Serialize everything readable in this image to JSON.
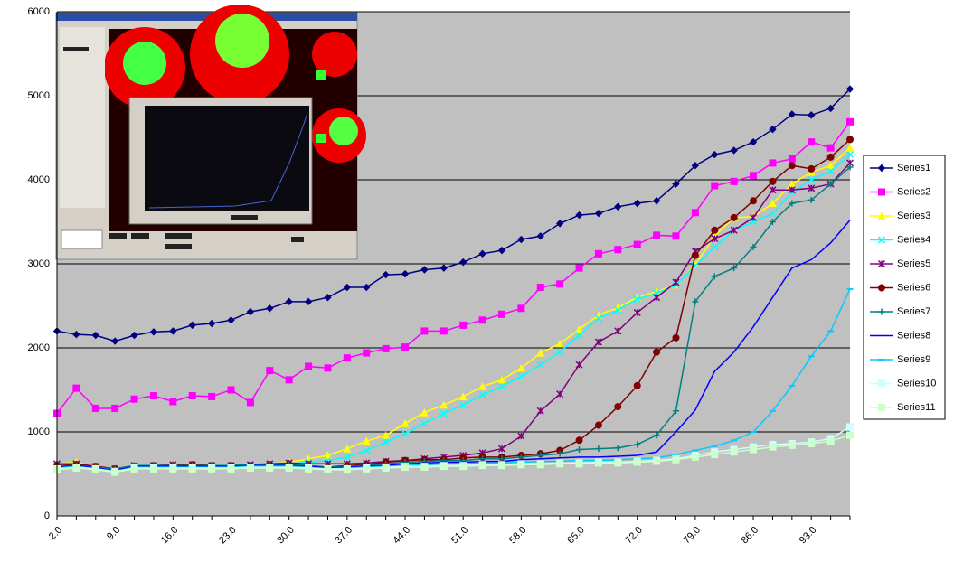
{
  "chart_data": {
    "type": "line",
    "categories": [
      "2.0",
      null,
      null,
      "9.0",
      null,
      null,
      "16.0",
      null,
      null,
      "23.0",
      null,
      null,
      "30.0",
      null,
      null,
      "37.0",
      null,
      null,
      "44.0",
      null,
      null,
      "51.0",
      null,
      null,
      "58.0",
      null,
      null,
      "65.0",
      null,
      null,
      "72.0",
      null,
      null,
      "79.0",
      null,
      null,
      "86.0",
      null,
      null,
      "93.0",
      null,
      null
    ],
    "ylim": [
      0,
      6000
    ],
    "yticks": [
      0,
      1000,
      2000,
      3000,
      4000,
      5000,
      6000
    ],
    "grid": true,
    "legend": "right",
    "series": [
      {
        "name": "Series1",
        "color": "#000080",
        "marker": "diamond",
        "values": [
          2200,
          2160,
          2150,
          2080,
          2150,
          2190,
          2200,
          2270,
          2290,
          2330,
          2430,
          2470,
          2550,
          2550,
          2600,
          2720,
          2720,
          2870,
          2880,
          2930,
          2950,
          3020,
          3120,
          3160,
          3290,
          3330,
          3480,
          3580,
          3600,
          3680,
          3720,
          3750,
          3950,
          4170,
          4300,
          4350,
          4450,
          4600,
          4780,
          4770,
          4850,
          5080
        ]
      },
      {
        "name": "Series2",
        "color": "#ff00ff",
        "marker": "square",
        "values": [
          1220,
          1520,
          1280,
          1280,
          1390,
          1430,
          1360,
          1430,
          1420,
          1500,
          1350,
          1730,
          1620,
          1780,
          1760,
          1880,
          1940,
          1990,
          2010,
          2200,
          2200,
          2270,
          2330,
          2400,
          2470,
          2720,
          2760,
          2950,
          3120,
          3170,
          3230,
          3340,
          3330,
          3610,
          3930,
          3980,
          4050,
          4200,
          4250,
          4450,
          4380,
          4690
        ]
      },
      {
        "name": "Series3",
        "color": "#ffff00",
        "marker": "triangle",
        "values": [
          620,
          640,
          580,
          550,
          590,
          600,
          600,
          610,
          600,
          590,
          600,
          620,
          640,
          680,
          720,
          800,
          890,
          960,
          1100,
          1230,
          1320,
          1420,
          1540,
          1620,
          1760,
          1940,
          2050,
          2220,
          2390,
          2480,
          2600,
          2670,
          2750,
          2990,
          3330,
          3550,
          3560,
          3720,
          3950,
          4090,
          4170,
          4380
        ]
      },
      {
        "name": "Series4",
        "color": "#00ffff",
        "marker": "x",
        "values": [
          600,
          610,
          580,
          560,
          590,
          600,
          600,
          610,
          600,
          590,
          600,
          610,
          620,
          640,
          660,
          700,
          780,
          880,
          980,
          1100,
          1220,
          1320,
          1440,
          1540,
          1660,
          1800,
          1950,
          2150,
          2350,
          2450,
          2580,
          2650,
          2750,
          2980,
          3200,
          3400,
          3500,
          3600,
          3850,
          4000,
          4100,
          4300
        ]
      },
      {
        "name": "Series5",
        "color": "#800080",
        "marker": "star",
        "values": [
          620,
          620,
          590,
          560,
          600,
          600,
          610,
          610,
          600,
          600,
          610,
          620,
          630,
          620,
          620,
          620,
          630,
          650,
          660,
          680,
          700,
          720,
          750,
          800,
          950,
          1250,
          1450,
          1800,
          2070,
          2200,
          2420,
          2600,
          2780,
          3150,
          3300,
          3400,
          3550,
          3880,
          3880,
          3900,
          3950,
          4200
        ]
      },
      {
        "name": "Series6",
        "color": "#800000",
        "marker": "circle",
        "values": [
          600,
          610,
          590,
          560,
          590,
          600,
          600,
          610,
          600,
          600,
          600,
          610,
          610,
          600,
          580,
          600,
          610,
          640,
          660,
          670,
          670,
          690,
          700,
          700,
          720,
          740,
          780,
          900,
          1080,
          1300,
          1550,
          1950,
          2120,
          3100,
          3400,
          3550,
          3750,
          3980,
          4170,
          4130,
          4270,
          4480
        ]
      },
      {
        "name": "Series7",
        "color": "#008080",
        "marker": "plus",
        "values": [
          590,
          600,
          580,
          560,
          600,
          600,
          600,
          600,
          600,
          600,
          610,
          610,
          610,
          600,
          580,
          590,
          600,
          620,
          640,
          650,
          660,
          660,
          680,
          680,
          700,
          720,
          740,
          790,
          800,
          810,
          850,
          960,
          1250,
          2550,
          2850,
          2950,
          3200,
          3500,
          3720,
          3760,
          3950,
          4150
        ]
      },
      {
        "name": "Series8",
        "color": "#0000ff",
        "marker": "none",
        "values": [
          580,
          600,
          570,
          540,
          590,
          590,
          590,
          590,
          590,
          590,
          600,
          600,
          600,
          590,
          570,
          580,
          590,
          600,
          620,
          630,
          640,
          640,
          650,
          650,
          670,
          680,
          690,
          700,
          700,
          710,
          720,
          760,
          1000,
          1260,
          1720,
          1950,
          2250,
          2600,
          2950,
          3050,
          3250,
          3520
        ]
      },
      {
        "name": "Series9",
        "color": "#00ccff",
        "marker": "dash",
        "values": [
          570,
          590,
          560,
          530,
          580,
          580,
          580,
          580,
          580,
          580,
          590,
          590,
          590,
          580,
          560,
          570,
          580,
          590,
          600,
          610,
          620,
          620,
          630,
          630,
          640,
          650,
          650,
          660,
          660,
          670,
          680,
          690,
          730,
          780,
          830,
          900,
          1000,
          1250,
          1550,
          1900,
          2200,
          2700
        ]
      },
      {
        "name": "Series10",
        "color": "#ccffff",
        "marker": "square",
        "values": [
          560,
          580,
          560,
          530,
          570,
          570,
          570,
          570,
          570,
          570,
          580,
          580,
          580,
          570,
          560,
          560,
          570,
          580,
          590,
          590,
          600,
          600,
          610,
          610,
          620,
          620,
          630,
          630,
          640,
          640,
          650,
          660,
          680,
          720,
          760,
          790,
          820,
          850,
          860,
          880,
          920,
          1060
        ]
      },
      {
        "name": "Series11",
        "color": "#ccffcc",
        "marker": "square",
        "values": [
          550,
          570,
          550,
          520,
          560,
          560,
          560,
          560,
          560,
          560,
          570,
          570,
          570,
          560,
          550,
          550,
          560,
          570,
          580,
          580,
          590,
          590,
          600,
          600,
          610,
          610,
          620,
          620,
          630,
          630,
          640,
          650,
          670,
          700,
          730,
          760,
          790,
          820,
          840,
          860,
          890,
          960
        ]
      }
    ]
  }
}
